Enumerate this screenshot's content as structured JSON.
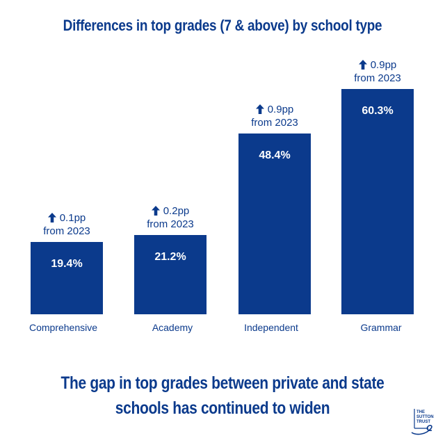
{
  "chart_data": {
    "type": "bar",
    "title": "Differences in top grades (7 & above) by school type",
    "categories": [
      "Comprehensive",
      "Academy",
      "Independent",
      "Grammar"
    ],
    "values": [
      19.4,
      21.2,
      48.4,
      60.3
    ],
    "value_labels": [
      "19.4%",
      "21.2%",
      "48.4%",
      "60.3%"
    ],
    "change_labels": [
      {
        "change": "0.1pp",
        "since": "from 2023"
      },
      {
        "change": "0.2pp",
        "since": "from 2023"
      },
      {
        "change": "0.9pp",
        "since": "from 2023"
      },
      {
        "change": "0.9pp",
        "since": "from 2023"
      }
    ],
    "ylim": [
      0,
      100
    ],
    "grid": false,
    "bar_color": "#0b3a8c"
  },
  "headline": {
    "line1": "The gap in top grades between private and state",
    "line2": "schools has continued to widen"
  },
  "logo": {
    "text_lines": [
      "THE",
      "SUTTON",
      "TRUST"
    ],
    "icon": "sutton-trust-logo"
  },
  "colors": {
    "brand": "#0b3a8c",
    "background": "#ffffff",
    "bar_text": "#ffffff"
  }
}
